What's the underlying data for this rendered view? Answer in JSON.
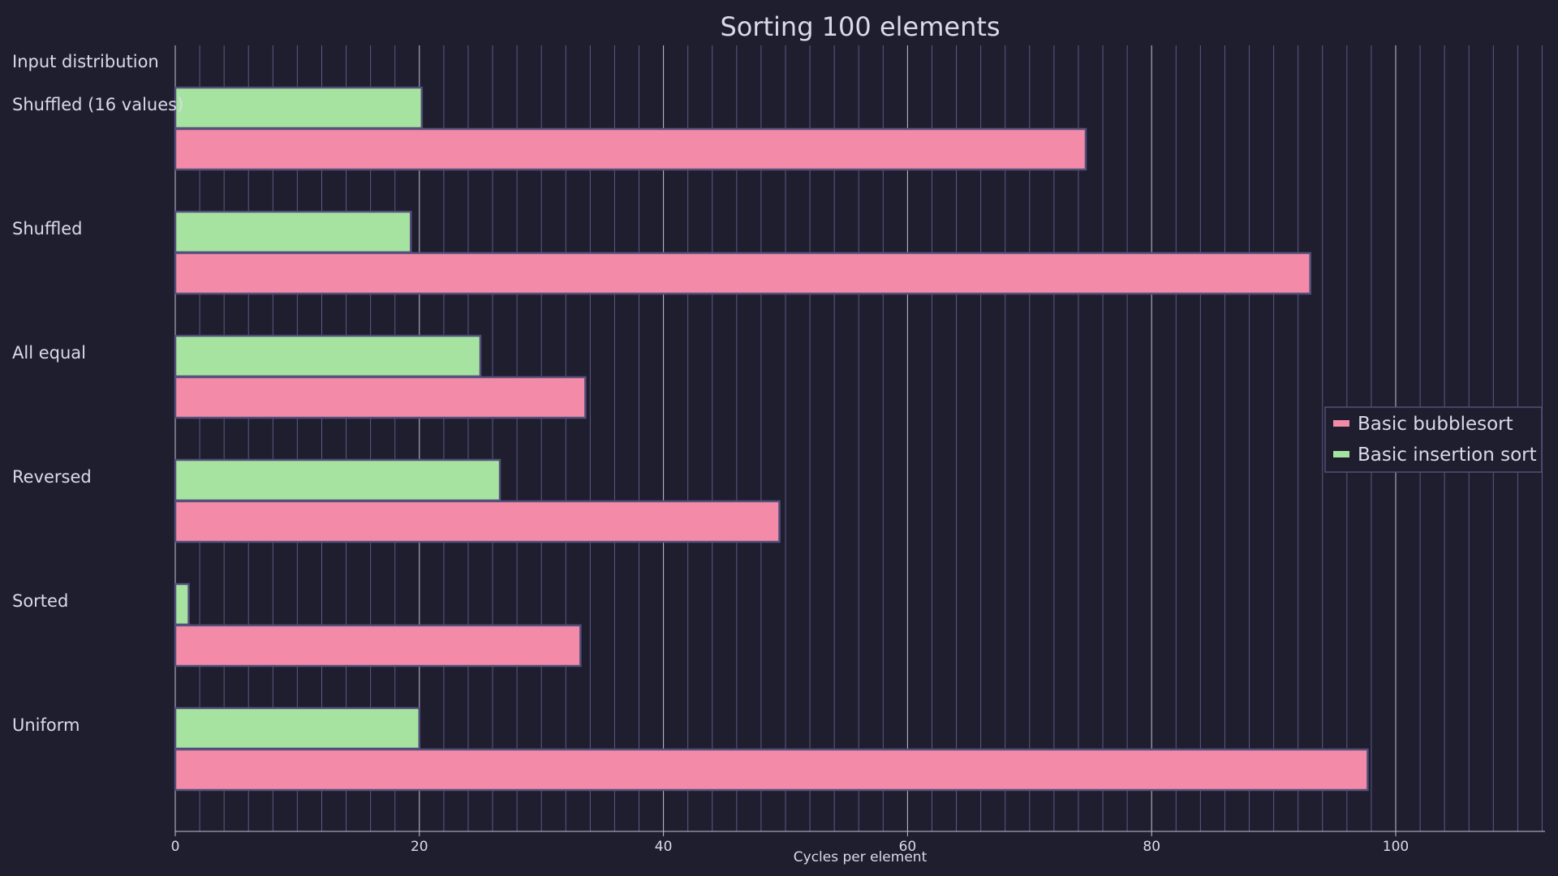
{
  "colors": {
    "background": "#1f1e2e",
    "grid_major": "#c2c3d8",
    "grid_minor": "#5b5987",
    "text": "#d9dbea",
    "bar_border": "#544f7b",
    "bubblesort": "#f38ba8",
    "insertion": "#a6e3a1"
  },
  "chart_data": {
    "type": "bar",
    "orientation": "horizontal",
    "title": "Sorting 100 elements",
    "xlabel": "Cycles per element",
    "ylabel": "Input distribution",
    "xlim": [
      0,
      112
    ],
    "x_ticks": [
      0,
      20,
      40,
      60,
      80,
      100
    ],
    "x_minor_step": 2,
    "grid": true,
    "legend_position": "right",
    "categories": [
      "Shuffled (16 values)",
      "Shuffled",
      "All equal",
      "Reversed",
      "Sorted",
      "Uniform"
    ],
    "series": [
      {
        "name": "Basic bubblesort",
        "color": "#f38ba8",
        "values": [
          74.6,
          93.0,
          33.6,
          49.5,
          33.2,
          97.7
        ]
      },
      {
        "name": "Basic insertion sort",
        "color": "#a6e3a1",
        "values": [
          20.2,
          19.3,
          25.0,
          26.6,
          1.1,
          20.0
        ]
      }
    ]
  }
}
